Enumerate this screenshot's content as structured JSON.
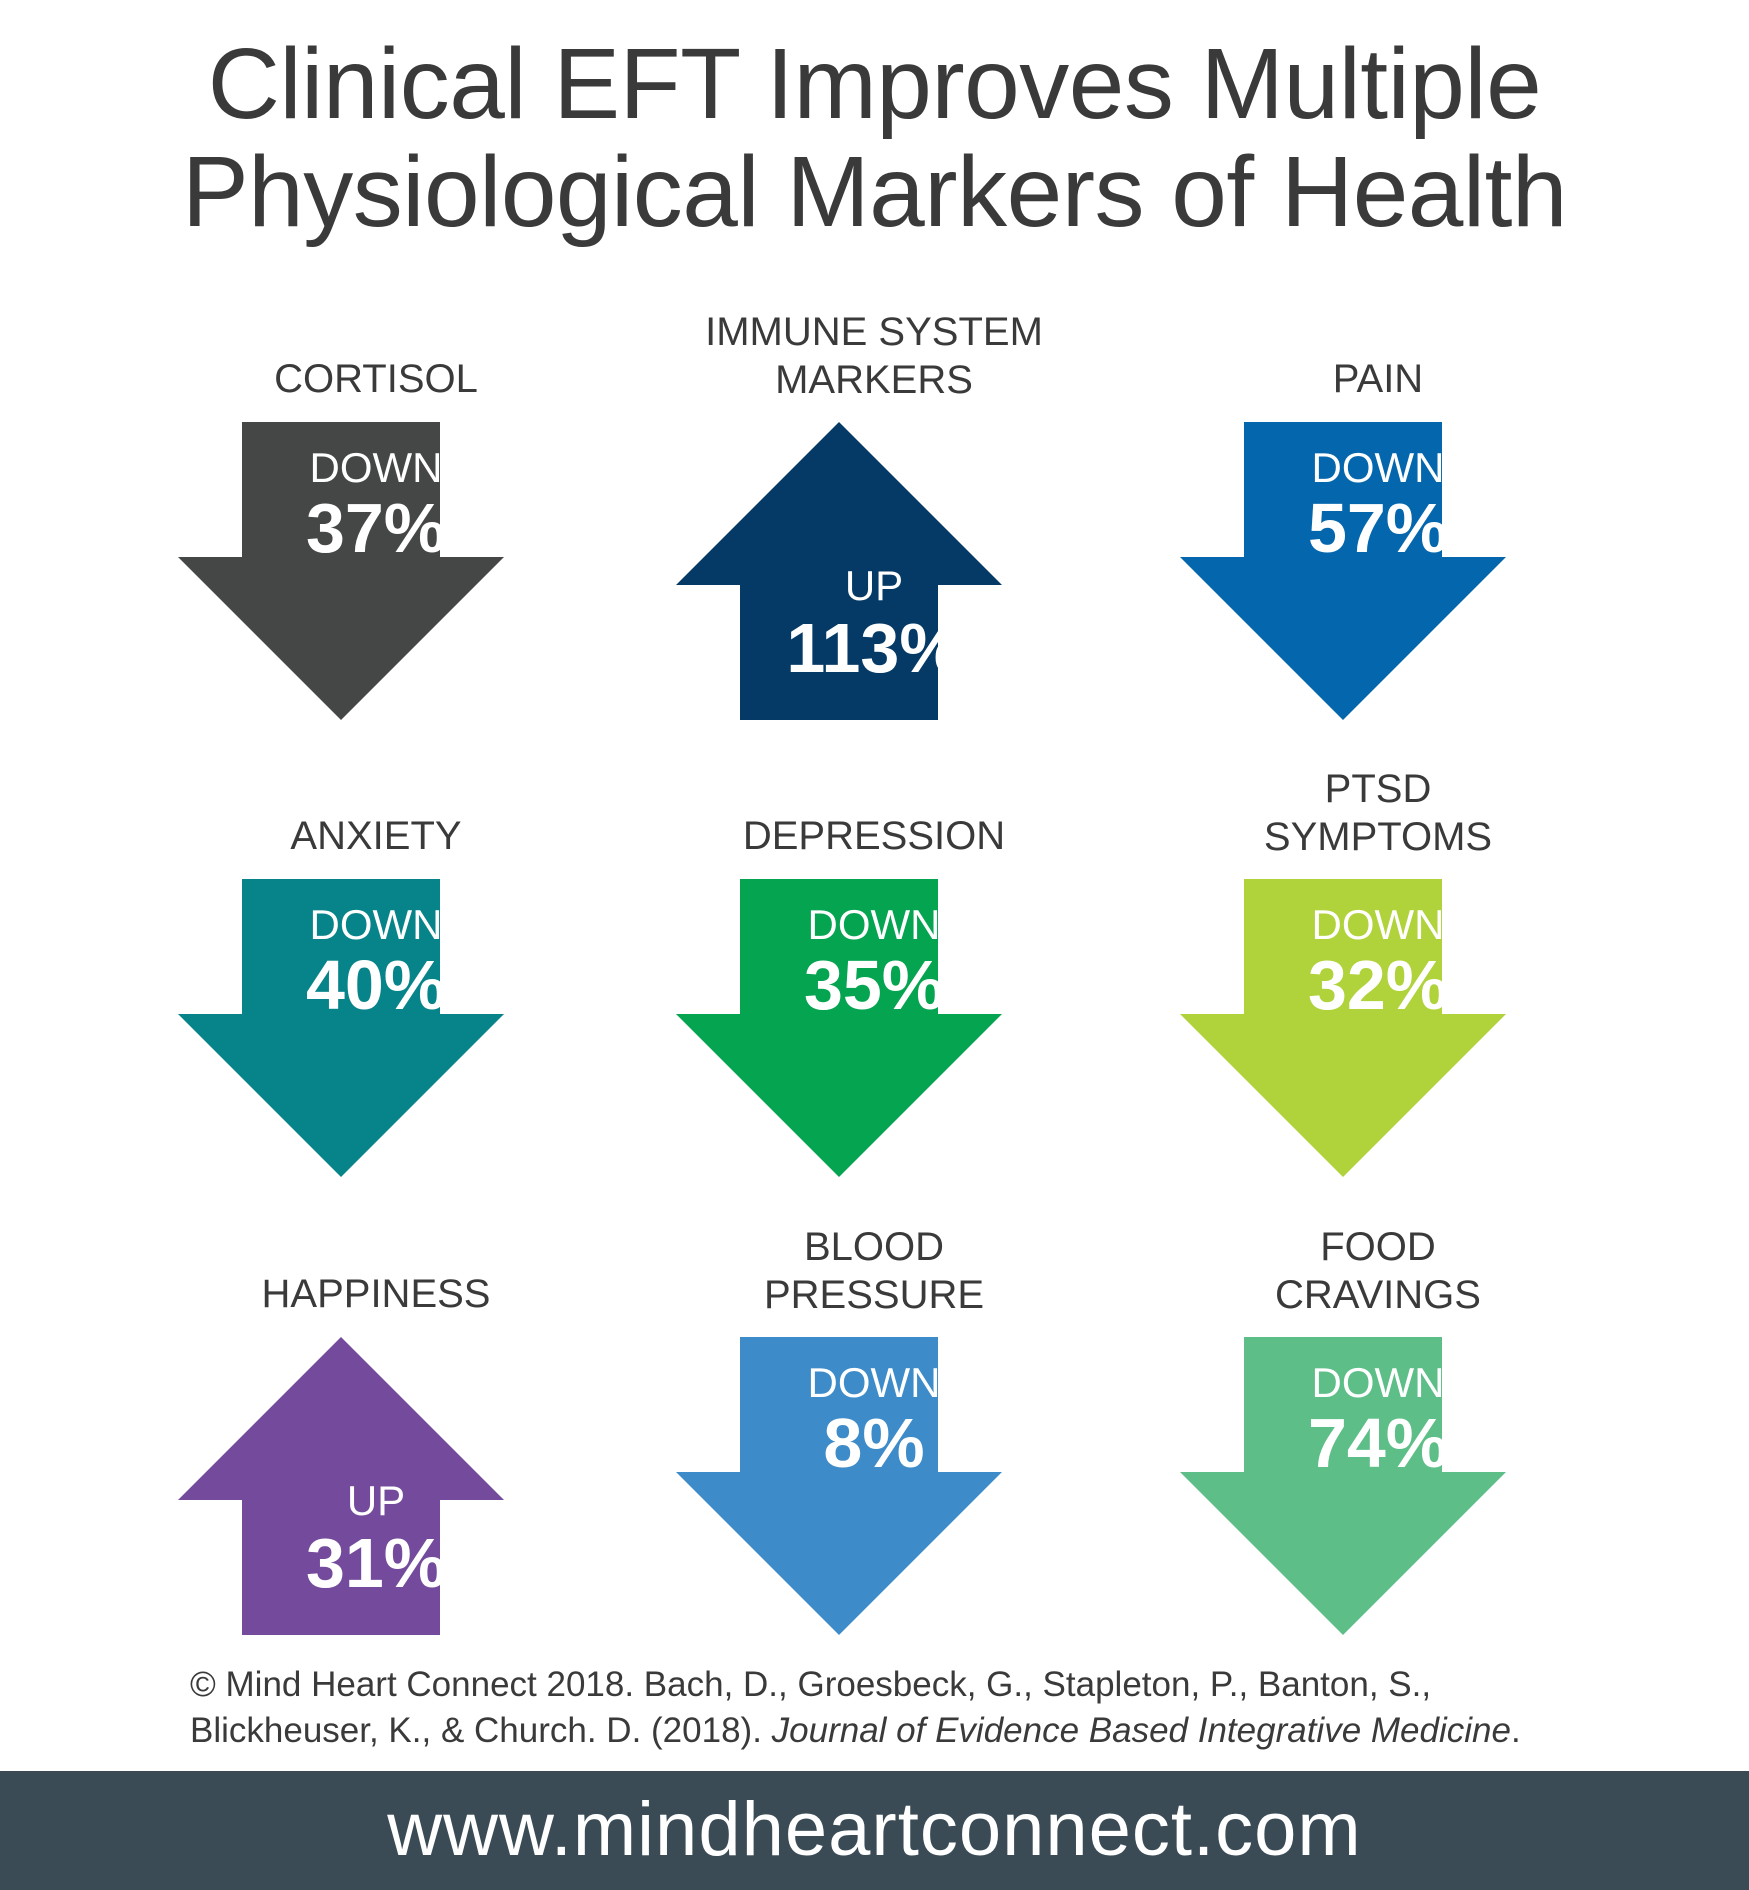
{
  "title": {
    "line1": "Clinical EFT Improves Multiple",
    "line2": "Physiological Markers of Health"
  },
  "markers": [
    {
      "label_lines": [
        "CORTISOL"
      ],
      "direction": "DOWN",
      "percent": "37%",
      "color": "#454747"
    },
    {
      "label_lines": [
        "IMMUNE SYSTEM",
        "MARKERS"
      ],
      "direction": "UP",
      "percent": "113%",
      "color": "#053a66"
    },
    {
      "label_lines": [
        "PAIN"
      ],
      "direction": "DOWN",
      "percent": "57%",
      "color": "#0467ad"
    },
    {
      "label_lines": [
        "ANXIETY"
      ],
      "direction": "DOWN",
      "percent": "40%",
      "color": "#06848a"
    },
    {
      "label_lines": [
        "DEPRESSION"
      ],
      "direction": "DOWN",
      "percent": "35%",
      "color": "#04a451"
    },
    {
      "label_lines": [
        "PTSD",
        "SYMPTOMS"
      ],
      "direction": "DOWN",
      "percent": "32%",
      "color": "#b0d23a"
    },
    {
      "label_lines": [
        "HAPPINESS"
      ],
      "direction": "UP",
      "percent": "31%",
      "color": "#744b9c"
    },
    {
      "label_lines": [
        "BLOOD",
        "PRESSURE"
      ],
      "direction": "DOWN",
      "percent": "8%",
      "color": "#3d8bc8"
    },
    {
      "label_lines": [
        "FOOD",
        "CRAVINGS"
      ],
      "direction": "DOWN",
      "percent": "74%",
      "color": "#5dbe87"
    }
  ],
  "citation": {
    "line1": "© Mind Heart Connect 2018. Bach, D., Groesbeck, G., Stapleton, P., Banton, S.,",
    "line2_plain": "Blickheuser, K., & Church. D. (2018). ",
    "line2_journal": "Journal of Evidence Based Integrative Medicine",
    "line2_end": "."
  },
  "footer": {
    "url": "www.mindheartconnect.com",
    "background": "#3a4b56"
  }
}
